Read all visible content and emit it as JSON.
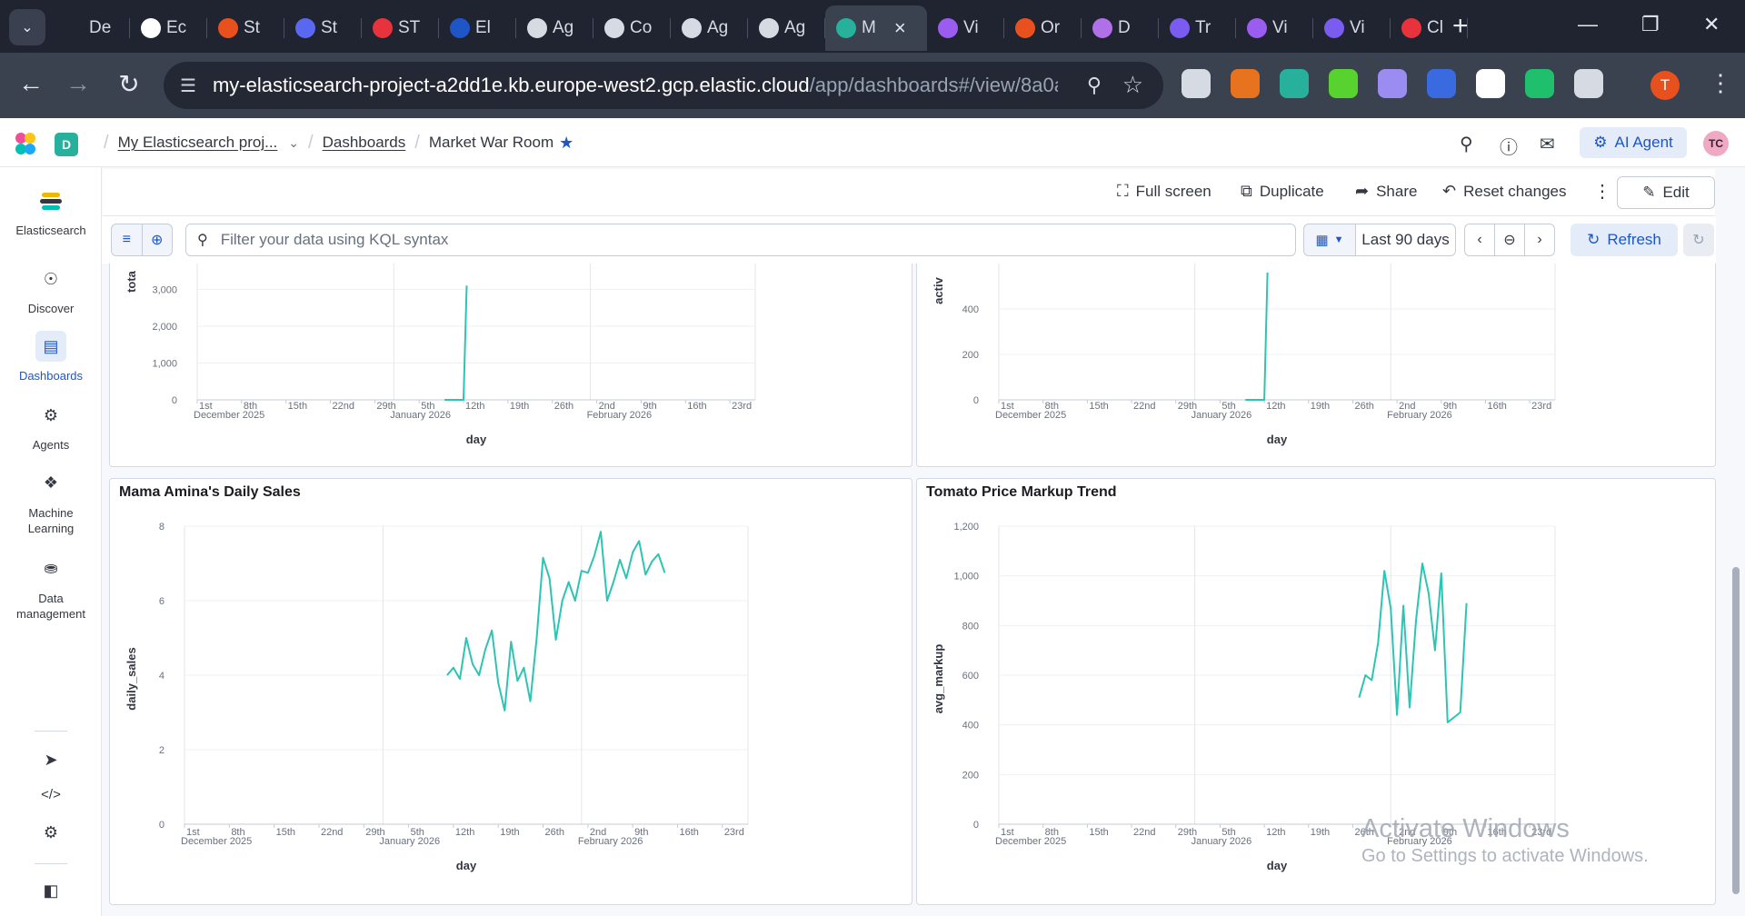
{
  "browser": {
    "tabs": [
      {
        "label": "De",
        "color": "#1f2430",
        "glyph": "D"
      },
      {
        "label": "Ec",
        "color": "#ffffff",
        "glyph": ""
      },
      {
        "label": "St",
        "color": "#e8501e",
        "glyph": ""
      },
      {
        "label": "St",
        "color": "#5a67f0",
        "glyph": ""
      },
      {
        "label": "ST",
        "color": "#e8323c",
        "glyph": ""
      },
      {
        "label": "El",
        "color": "#1e56c7",
        "glyph": ""
      },
      {
        "label": "Ag",
        "color": "#d6dae2",
        "glyph": ""
      },
      {
        "label": "Co",
        "color": "#d6dae2",
        "glyph": ""
      },
      {
        "label": "Ag",
        "color": "#d6dae2",
        "glyph": ""
      },
      {
        "label": "Ag",
        "color": "#d6dae2",
        "glyph": ""
      },
      {
        "label": "M",
        "color": "#27b09b",
        "glyph": "",
        "active": true
      },
      {
        "label": "Vi",
        "color": "#9b5cf0",
        "glyph": ""
      },
      {
        "label": "Or",
        "color": "#e8501e",
        "glyph": ""
      },
      {
        "label": "D",
        "color": "#b070e8",
        "glyph": ""
      },
      {
        "label": "Tr",
        "color": "#7a5cf0",
        "glyph": ""
      },
      {
        "label": "Vi",
        "color": "#9b5cf0",
        "glyph": ""
      },
      {
        "label": "Vi",
        "color": "#7a5cf0",
        "glyph": ""
      },
      {
        "label": "Cl",
        "color": "#e8323c",
        "glyph": ""
      }
    ],
    "url_host": "my-elasticsearch-project-a2dd1e.kb.europe-west2.gcp.elastic.cloud",
    "url_path": "/app/dashboards#/view/8a0aef...",
    "profile_initial": "T",
    "extensions": [
      "#d6dae2",
      "#e8731e",
      "#27b09b",
      "#58d22e",
      "#9a8cf0",
      "#3a6ae0",
      "#ffffff",
      "#1fbf6e",
      "#d6dae2"
    ]
  },
  "header": {
    "space_initial": "D",
    "project_crumb": "My Elasticsearch proj...",
    "dashboards_crumb": "Dashboards",
    "current_crumb": "Market War Room",
    "ai_agent_label": "AI Agent",
    "user_initials": "TC"
  },
  "sidebar": {
    "items": [
      {
        "label": "Elasticsearch"
      },
      {
        "label": "Discover"
      },
      {
        "label": "Dashboards"
      },
      {
        "label": "Agents"
      },
      {
        "label": "Machine Learning"
      },
      {
        "label": "Data management"
      }
    ]
  },
  "toolbar": {
    "full_screen": "Full screen",
    "duplicate": "Duplicate",
    "share": "Share",
    "reset_changes": "Reset changes",
    "edit": "Edit"
  },
  "query": {
    "placeholder": "Filter your data using KQL syntax",
    "time_range": "Last 90 days",
    "refresh": "Refresh"
  },
  "chart_data": [
    {
      "type": "line",
      "title": "",
      "ylabel": "tota",
      "xlabel": "day",
      "y_ticks": [
        "0",
        "1,000",
        "2,000",
        "3,000"
      ],
      "x_ticks": [
        "1st",
        "8th",
        "15th",
        "22nd",
        "29th",
        "5th",
        "12th",
        "19th",
        "26th",
        "2nd",
        "9th",
        "16th",
        "23rd"
      ],
      "x_period_labels": [
        "December 2025",
        "January 2026",
        "February 2026"
      ],
      "values_note_units": "day index since Dec 1, 2025 vs total",
      "x": [
        39,
        41,
        42,
        42.5
      ],
      "y": [
        0,
        0,
        0,
        3100
      ]
    },
    {
      "type": "line",
      "title": "",
      "ylabel": "activ",
      "xlabel": "day",
      "y_ticks": [
        "0",
        "200",
        "400"
      ],
      "x_ticks": [
        "1st",
        "8th",
        "15th",
        "22nd",
        "29th",
        "5th",
        "12th",
        "19th",
        "26th",
        "2nd",
        "9th",
        "16th",
        "23rd"
      ],
      "x_period_labels": [
        "December 2025",
        "January 2026",
        "February 2026"
      ],
      "x": [
        39,
        41,
        42,
        42.5
      ],
      "y": [
        0,
        0,
        0,
        560
      ]
    },
    {
      "type": "line",
      "title": "Mama Amina's Daily Sales",
      "ylabel": "daily_sales",
      "xlabel": "day",
      "y_ticks": [
        "0",
        "2",
        "4",
        "6",
        "8"
      ],
      "x_ticks": [
        "1st",
        "8th",
        "15th",
        "22nd",
        "29th",
        "5th",
        "12th",
        "19th",
        "26th",
        "2nd",
        "9th",
        "16th",
        "23rd"
      ],
      "x_period_labels": [
        "December 2025",
        "January 2026",
        "February 2026"
      ],
      "x": [
        41,
        42,
        43,
        44,
        45,
        46,
        47,
        48,
        49,
        50,
        51,
        52,
        53,
        54,
        55,
        56,
        57,
        58,
        59,
        60,
        61,
        62,
        63,
        64,
        65,
        66,
        67,
        68,
        69,
        70,
        71,
        72,
        73,
        74,
        75
      ],
      "y": [
        4.0,
        4.2,
        3.9,
        5.0,
        4.3,
        4.0,
        4.7,
        5.2,
        3.8,
        3.05,
        4.9,
        3.85,
        4.2,
        3.3,
        5.0,
        7.15,
        6.6,
        4.95,
        6.0,
        6.5,
        6.0,
        6.8,
        6.75,
        7.2,
        7.85,
        6.0,
        6.5,
        7.1,
        6.6,
        7.3,
        7.6,
        6.7,
        7.05,
        7.25,
        6.75
      ]
    },
    {
      "type": "line",
      "title": "Tomato Price Markup Trend",
      "ylabel": "avg_markup",
      "xlabel": "day",
      "y_ticks": [
        "0",
        "200",
        "400",
        "600",
        "800",
        "1,000",
        "1,200"
      ],
      "x_ticks": [
        "1st",
        "8th",
        "15th",
        "22nd",
        "29th",
        "5th",
        "12th",
        "19th",
        "26th",
        "2nd",
        "9th",
        "16th",
        "23rd"
      ],
      "x_period_labels": [
        "December 2025",
        "January 2026",
        "February 2026"
      ],
      "x": [
        57,
        58,
        59,
        60,
        61,
        62,
        63,
        64,
        65,
        66,
        67,
        68,
        69,
        70,
        71,
        72,
        73,
        74
      ],
      "y": [
        510,
        600,
        580,
        730,
        1020,
        870,
        440,
        880,
        470,
        820,
        1050,
        930,
        700,
        1010,
        410,
        430,
        450,
        890
      ]
    }
  ],
  "watermark": {
    "line1": "Activate Windows",
    "line2": "Go to Settings to activate Windows."
  }
}
